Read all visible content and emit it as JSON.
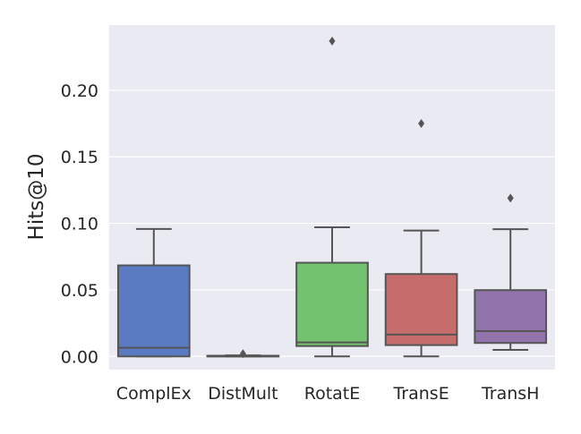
{
  "chart_data": {
    "type": "box",
    "title": "",
    "xlabel": "",
    "ylabel": "Hits@10",
    "ylim": [
      -0.0099,
      0.249
    ],
    "yticks": [
      0.0,
      0.05,
      0.1,
      0.15,
      0.2
    ],
    "ytick_labels": [
      "0.00",
      "0.05",
      "0.10",
      "0.15",
      "0.20"
    ],
    "grid": true,
    "background": "#eaeaf2",
    "categories": [
      "ComplEx",
      "DistMult",
      "RotatE",
      "TransE",
      "TransH"
    ],
    "boxes": [
      {
        "min": 0.0,
        "q1": 0.0,
        "median": 0.0065,
        "q3": 0.0684,
        "max": 0.0958,
        "outliers": [],
        "color": "#5a7bc2"
      },
      {
        "min": 0.0,
        "q1": 0.0,
        "median": 0.0,
        "q3": 0.0005,
        "max": 0.0008,
        "outliers": [
          0.002
        ],
        "color": "#ee854a"
      },
      {
        "min": 0.0,
        "q1": 0.0078,
        "median": 0.0105,
        "q3": 0.0704,
        "max": 0.097,
        "outliers": [
          0.237
        ],
        "color": "#72c26e"
      },
      {
        "min": 0.0,
        "q1": 0.0085,
        "median": 0.0164,
        "q3": 0.0619,
        "max": 0.0946,
        "outliers": [
          0.175
        ],
        "color": "#c66c6c"
      },
      {
        "min": 0.0049,
        "q1": 0.0101,
        "median": 0.019,
        "q3": 0.0498,
        "max": 0.0956,
        "outliers": [
          0.119
        ],
        "color": "#9373ab"
      }
    ]
  }
}
